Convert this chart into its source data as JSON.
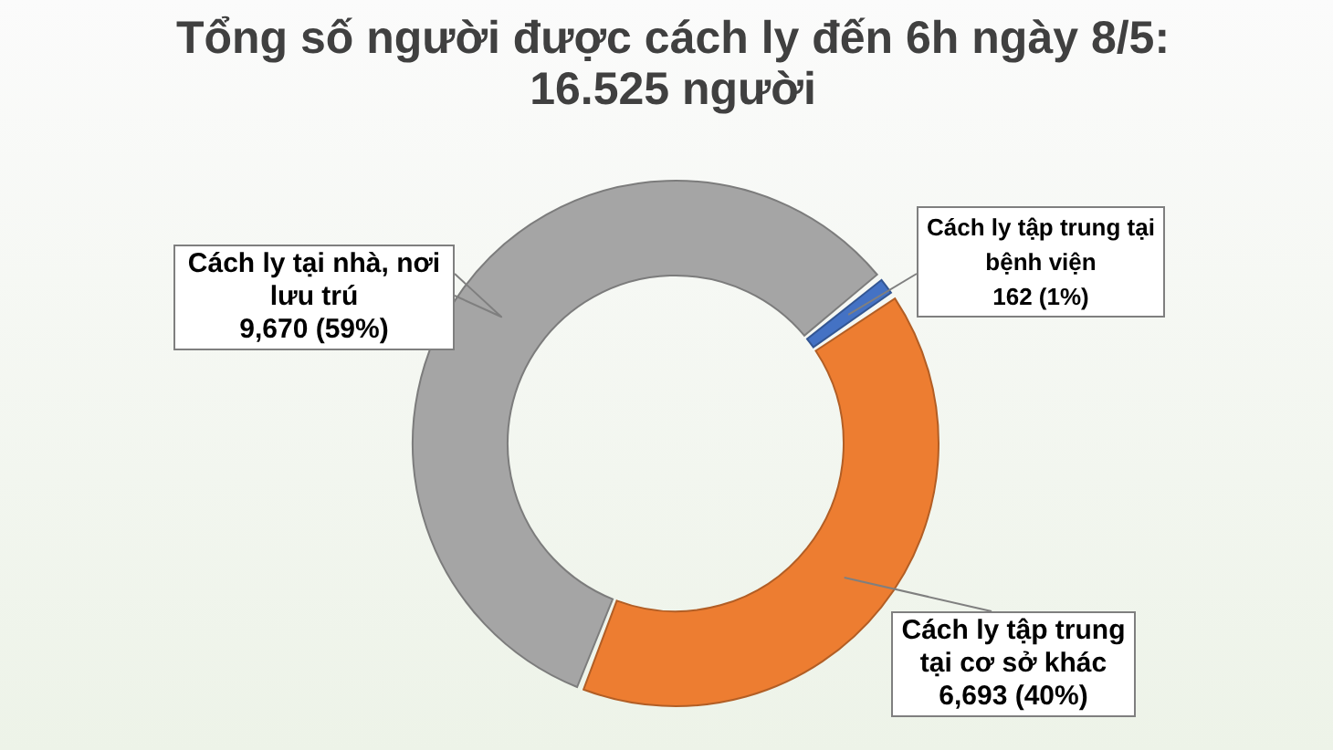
{
  "chart_data": {
    "type": "donut",
    "title": "Tổng số người được cách ly đến 6h ngày 8/5:",
    "subtitle": "16.525 người",
    "categories": [
      "Cách ly tại nhà, nơi lưu trú",
      "Cách ly tập trung tại bệnh viện",
      "Cách ly tập trung tại cơ sở khác"
    ],
    "values": [
      9670,
      162,
      6693
    ],
    "colors": [
      "#a5a5a5",
      "#4472c4",
      "#ed7d31"
    ],
    "value_labels": [
      "9,670 (59%)",
      "162 (1%)",
      "6,693 (40%)"
    ]
  }
}
